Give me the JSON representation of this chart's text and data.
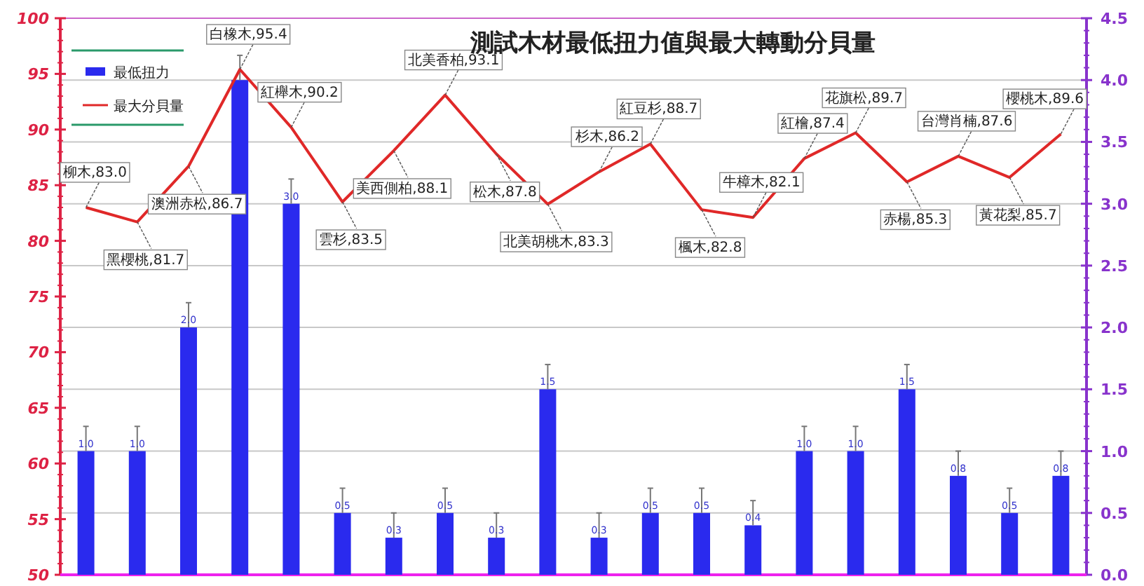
{
  "chart_data": {
    "type": "bar",
    "title": "測試木材最低扭力值與最大轉動分貝量",
    "categories": [
      null,
      null,
      null,
      null,
      null,
      null,
      null,
      null,
      null,
      null,
      null,
      null,
      null,
      null,
      null,
      null,
      null,
      null,
      null,
      null
    ],
    "series": [
      {
        "name": "最低扭力",
        "axis": "y2",
        "color": "#2a2aee",
        "values": [
          1.0,
          1.0,
          2.0,
          4.0,
          3.0,
          0.5,
          0.3,
          0.5,
          0.3,
          1.5,
          0.3,
          0.5,
          0.5,
          0.4,
          1.0,
          1.0,
          1.5,
          0.8,
          0.5,
          0.8
        ],
        "value_labels": [
          "1.0",
          "1.0",
          "2.0",
          null,
          "3.0",
          "0.5",
          "0.3",
          "0.5",
          "0.3",
          "1.5",
          "0.3",
          "0.5",
          "0.5",
          "0.4",
          "1.0",
          "1.0",
          "1.5",
          "0.8",
          "0.5",
          "0.8"
        ],
        "errors": [
          [
            1.0,
            1.2
          ],
          [
            1.0,
            1.2
          ],
          [
            2.0,
            2.2
          ],
          [
            4.0,
            4.2
          ],
          [
            3.0,
            3.2
          ],
          [
            0.5,
            0.7
          ],
          [
            0.3,
            0.5
          ],
          [
            0.5,
            0.7
          ],
          [
            0.3,
            0.5
          ],
          [
            1.5,
            1.7
          ],
          [
            0.3,
            0.5
          ],
          [
            0.5,
            0.7
          ],
          [
            0.5,
            0.7
          ],
          [
            0.4,
            0.6
          ],
          [
            1.0,
            1.2
          ],
          [
            1.0,
            1.2
          ],
          [
            1.5,
            1.7
          ],
          [
            0.8,
            1.0
          ],
          [
            0.5,
            0.7
          ],
          [
            0.8,
            1.0
          ]
        ]
      },
      {
        "name": "最大分貝量",
        "type": "line",
        "color": "#e02828",
        "values": [
          83.0,
          81.7,
          86.7,
          95.4,
          90.2,
          83.5,
          88.1,
          93.1,
          87.8,
          83.3,
          86.2,
          88.7,
          82.8,
          82.1,
          87.4,
          89.7,
          85.3,
          87.6,
          85.7,
          89.6
        ],
        "value_labels": [
          "柳木,83.0",
          "黑櫻桃,81.7",
          "澳洲赤松,86.7",
          "白橡木,95.4",
          "紅櫸木,90.2",
          "雲杉,83.5",
          "美西側柏,88.1",
          "北美香柏,93.1",
          "松木,87.8",
          "北美胡桃木,83.3",
          "杉木,86.2",
          "紅豆杉,88.7",
          "楓木,82.8",
          "牛樟木,82.1",
          "紅檜,87.4",
          "花旗松,89.7",
          "赤楊,85.3",
          "台灣肖楠,87.6",
          "黃花梨,85.7",
          "櫻桃木,89.6"
        ]
      }
    ],
    "ylim": [
      50,
      100
    ],
    "yticks": [
      50,
      55,
      60,
      65,
      70,
      75,
      80,
      85,
      90,
      95,
      100
    ],
    "y2lim": [
      0,
      4.5
    ],
    "y2ticks": [
      {
        "value": 0,
        "label": "0.0"
      },
      {
        "value": 0.5,
        "label": "0.5"
      },
      {
        "value": 1,
        "label": "1.0"
      },
      {
        "value": 1.5,
        "label": "1.5"
      },
      {
        "value": 2,
        "label": "2.0"
      },
      {
        "value": 2.5,
        "label": "2.5"
      },
      {
        "value": 3,
        "label": "3.0"
      },
      {
        "value": 3.5,
        "label": "3.5"
      },
      {
        "value": 4,
        "label": "4.0"
      },
      {
        "value": 4.5,
        "label": "4.5"
      }
    ],
    "grid": "y",
    "legend": "top left"
  }
}
